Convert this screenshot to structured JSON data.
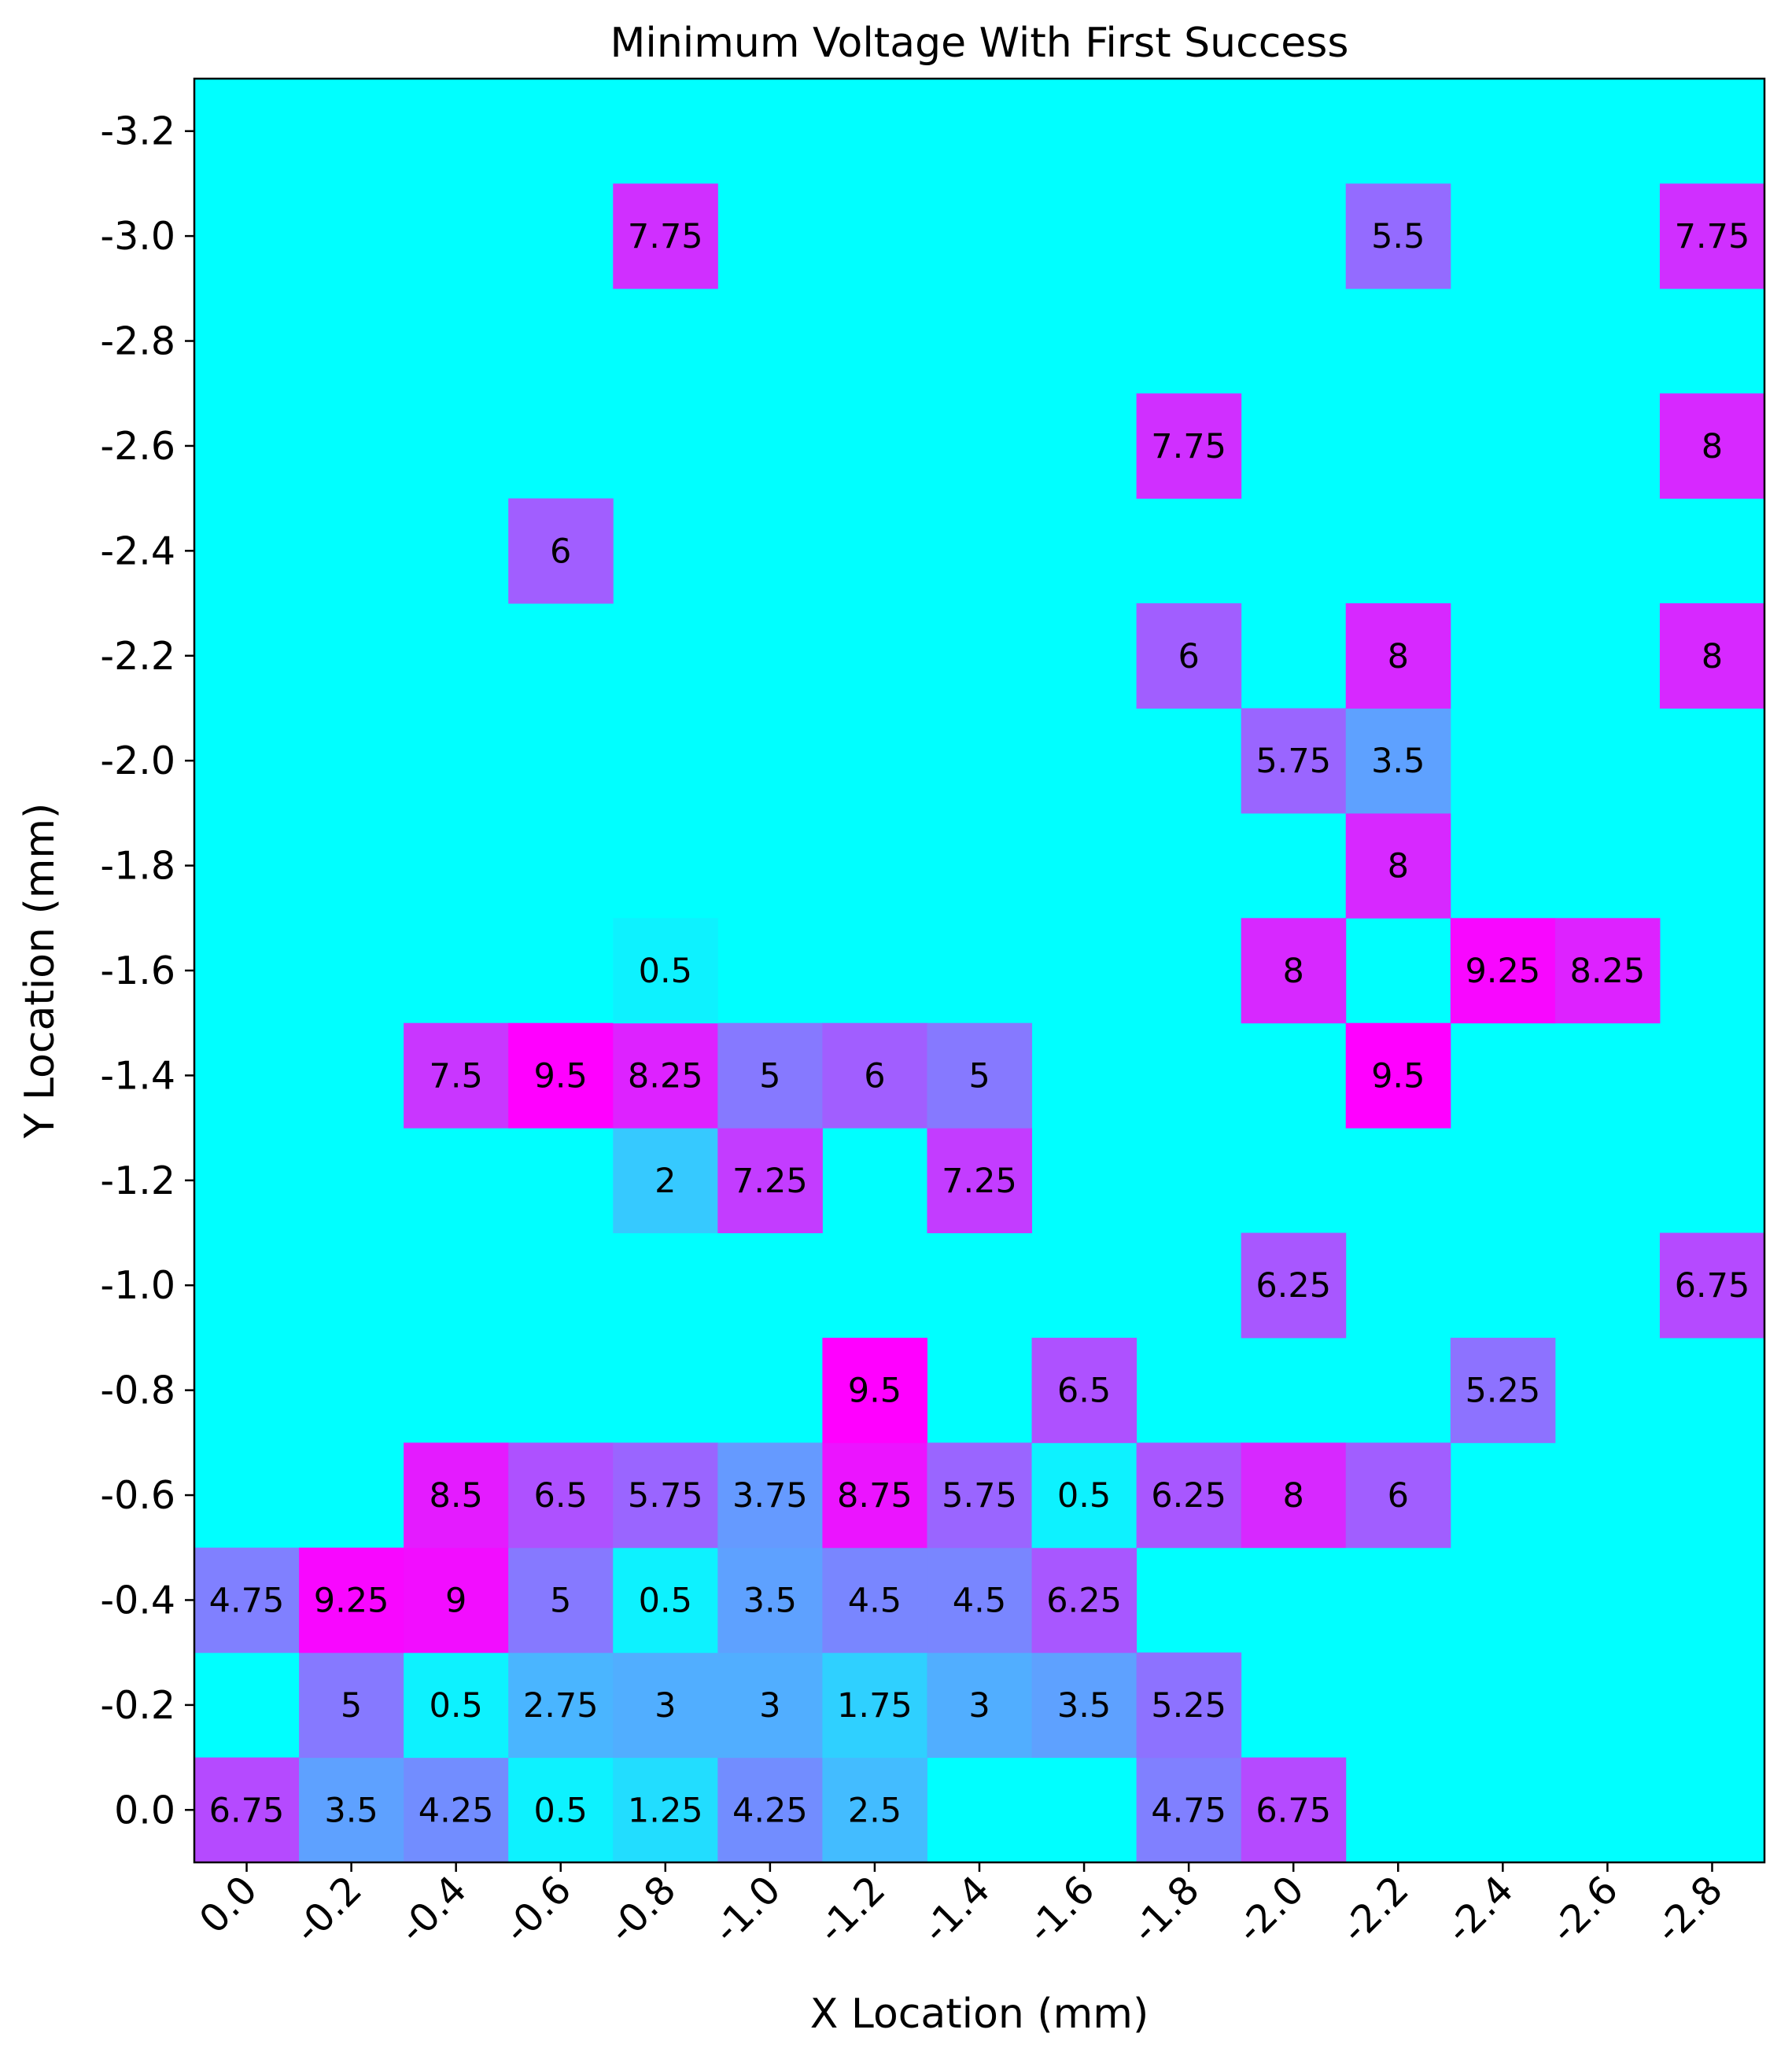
{
  "chart_data": {
    "type": "heatmap",
    "title": "Minimum Voltage With First Success",
    "xlabel": "X Location (mm)",
    "ylabel": "Y Location (mm)",
    "x_ticks": [
      "0.0",
      "-0.2",
      "-0.4",
      "-0.6",
      "-0.8",
      "-1.0",
      "-1.2",
      "-1.4",
      "-1.6",
      "-1.8",
      "-2.0",
      "-2.2",
      "-2.4",
      "-2.6",
      "-2.8"
    ],
    "y_ticks": [
      "0.0",
      "-0.2",
      "-0.4",
      "-0.6",
      "-0.8",
      "-1.0",
      "-1.2",
      "-1.4",
      "-1.6",
      "-1.8",
      "-2.0",
      "-2.2",
      "-2.4",
      "-2.6",
      "-2.8",
      "-3.0",
      "-3.2"
    ],
    "x_values": [
      0.0,
      -0.2,
      -0.4,
      -0.6,
      -0.8,
      -1.0,
      -1.2,
      -1.4,
      -1.6,
      -1.8,
      -2.0,
      -2.2,
      -2.4,
      -2.6,
      -2.8
    ],
    "y_values": [
      0.0,
      -0.2,
      -0.4,
      -0.6,
      -0.8,
      -1.0,
      -1.2,
      -1.4,
      -1.6,
      -1.8,
      -2.0,
      -2.2,
      -2.4,
      -2.6,
      -2.8,
      -3.0
    ],
    "ylim": [
      0.1,
      -3.3
    ],
    "colormap": "cool",
    "vmin": 0.0,
    "vmax": 9.5,
    "grid": false,
    "cells": [
      {
        "x": 0.0,
        "y": 0.0,
        "value": 6.75
      },
      {
        "x": -0.2,
        "y": 0.0,
        "value": 3.5
      },
      {
        "x": -0.4,
        "y": 0.0,
        "value": 4.25
      },
      {
        "x": -0.6,
        "y": 0.0,
        "value": 0.5
      },
      {
        "x": -0.8,
        "y": 0.0,
        "value": 1.25
      },
      {
        "x": -1.0,
        "y": 0.0,
        "value": 4.25
      },
      {
        "x": -1.2,
        "y": 0.0,
        "value": 2.5
      },
      {
        "x": -1.8,
        "y": 0.0,
        "value": 4.75
      },
      {
        "x": -2.0,
        "y": 0.0,
        "value": 6.75
      },
      {
        "x": -0.2,
        "y": -0.2,
        "value": 5.0
      },
      {
        "x": -0.4,
        "y": -0.2,
        "value": 0.5
      },
      {
        "x": -0.6,
        "y": -0.2,
        "value": 2.75
      },
      {
        "x": -0.8,
        "y": -0.2,
        "value": 3.0
      },
      {
        "x": -1.0,
        "y": -0.2,
        "value": 3.0
      },
      {
        "x": -1.2,
        "y": -0.2,
        "value": 1.75
      },
      {
        "x": -1.4,
        "y": -0.2,
        "value": 3.0
      },
      {
        "x": -1.6,
        "y": -0.2,
        "value": 3.5
      },
      {
        "x": -1.8,
        "y": -0.2,
        "value": 5.25
      },
      {
        "x": 0.0,
        "y": -0.4,
        "value": 4.75
      },
      {
        "x": -0.2,
        "y": -0.4,
        "value": 9.25
      },
      {
        "x": -0.4,
        "y": -0.4,
        "value": 9.0
      },
      {
        "x": -0.6,
        "y": -0.4,
        "value": 5.0
      },
      {
        "x": -0.8,
        "y": -0.4,
        "value": 0.5
      },
      {
        "x": -1.0,
        "y": -0.4,
        "value": 3.5
      },
      {
        "x": -1.2,
        "y": -0.4,
        "value": 4.5
      },
      {
        "x": -1.4,
        "y": -0.4,
        "value": 4.5
      },
      {
        "x": -1.6,
        "y": -0.4,
        "value": 6.25
      },
      {
        "x": -0.4,
        "y": -0.6,
        "value": 8.5
      },
      {
        "x": -0.6,
        "y": -0.6,
        "value": 6.5
      },
      {
        "x": -0.8,
        "y": -0.6,
        "value": 5.75
      },
      {
        "x": -1.0,
        "y": -0.6,
        "value": 3.75
      },
      {
        "x": -1.2,
        "y": -0.6,
        "value": 8.75
      },
      {
        "x": -1.4,
        "y": -0.6,
        "value": 5.75
      },
      {
        "x": -1.6,
        "y": -0.6,
        "value": 0.5
      },
      {
        "x": -1.8,
        "y": -0.6,
        "value": 6.25
      },
      {
        "x": -2.0,
        "y": -0.6,
        "value": 8.0
      },
      {
        "x": -2.2,
        "y": -0.6,
        "value": 6.0
      },
      {
        "x": -1.2,
        "y": -0.8,
        "value": 9.5
      },
      {
        "x": -1.6,
        "y": -0.8,
        "value": 6.5
      },
      {
        "x": -2.4,
        "y": -0.8,
        "value": 5.25
      },
      {
        "x": -2.0,
        "y": -1.0,
        "value": 6.25
      },
      {
        "x": -2.8,
        "y": -1.0,
        "value": 6.75
      },
      {
        "x": -0.8,
        "y": -1.2,
        "value": 2.0
      },
      {
        "x": -1.0,
        "y": -1.2,
        "value": 7.25
      },
      {
        "x": -1.4,
        "y": -1.2,
        "value": 7.25
      },
      {
        "x": -0.4,
        "y": -1.4,
        "value": 7.5
      },
      {
        "x": -0.6,
        "y": -1.4,
        "value": 9.5
      },
      {
        "x": -0.8,
        "y": -1.4,
        "value": 8.25
      },
      {
        "x": -1.0,
        "y": -1.4,
        "value": 5.0
      },
      {
        "x": -1.2,
        "y": -1.4,
        "value": 6.0
      },
      {
        "x": -1.4,
        "y": -1.4,
        "value": 5.0
      },
      {
        "x": -2.2,
        "y": -1.4,
        "value": 9.5
      },
      {
        "x": -0.8,
        "y": -1.6,
        "value": 0.5
      },
      {
        "x": -2.0,
        "y": -1.6,
        "value": 8.0
      },
      {
        "x": -2.4,
        "y": -1.6,
        "value": 9.25
      },
      {
        "x": -2.6,
        "y": -1.6,
        "value": 8.25
      },
      {
        "x": -2.2,
        "y": -1.8,
        "value": 8.0
      },
      {
        "x": -2.0,
        "y": -2.0,
        "value": 5.75
      },
      {
        "x": -2.2,
        "y": -2.0,
        "value": 3.5
      },
      {
        "x": -1.8,
        "y": -2.2,
        "value": 6.0
      },
      {
        "x": -2.2,
        "y": -2.2,
        "value": 8.0
      },
      {
        "x": -2.8,
        "y": -2.2,
        "value": 8.0
      },
      {
        "x": -0.6,
        "y": -2.4,
        "value": 6.0
      },
      {
        "x": -1.8,
        "y": -2.6,
        "value": 7.75
      },
      {
        "x": -2.8,
        "y": -2.6,
        "value": 8.0
      },
      {
        "x": -0.8,
        "y": -3.0,
        "value": 7.75
      },
      {
        "x": -2.2,
        "y": -3.0,
        "value": 5.5
      },
      {
        "x": -2.8,
        "y": -3.0,
        "value": 7.75
      }
    ]
  }
}
